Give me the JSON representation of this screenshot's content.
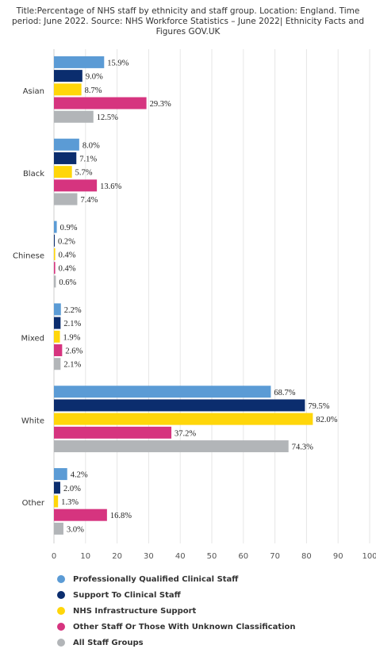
{
  "chart_data": {
    "type": "bar",
    "orientation": "horizontal",
    "title": "Title:Percentage of NHS staff by ethnicity and staff group. Location: England. Time period: June 2022. Source: NHS Workforce Statistics – June 2022| Ethnicity Facts and Figures GOV.UK",
    "categories": [
      "Asian",
      "Black",
      "Chinese",
      "Mixed",
      "White",
      "Other"
    ],
    "series": [
      {
        "name": "Professionally Qualified Clinical Staff",
        "color": "#5b9bd5",
        "values": [
          15.9,
          8.0,
          0.9,
          2.2,
          68.7,
          4.2
        ]
      },
      {
        "name": "Support To Clinical Staff",
        "color": "#0b2d6e",
        "values": [
          9.0,
          7.1,
          0.2,
          2.1,
          79.5,
          2.0
        ]
      },
      {
        "name": "NHS Infrastructure Support",
        "color": "#ffd60a",
        "values": [
          8.7,
          5.7,
          0.4,
          1.9,
          82.0,
          1.3
        ]
      },
      {
        "name": "Other Staff Or Those With Unknown Classification",
        "color": "#d6347f",
        "values": [
          29.3,
          13.6,
          0.4,
          2.6,
          37.2,
          16.8
        ]
      },
      {
        "name": "All Staff Groups",
        "color": "#b2b5b8",
        "values": [
          12.5,
          7.4,
          0.6,
          2.1,
          74.3,
          3.0
        ]
      }
    ],
    "value_suffix": "%",
    "xlim": [
      0,
      100
    ],
    "xticks": [
      0,
      10,
      20,
      30,
      40,
      50,
      60,
      70,
      80,
      90,
      100
    ],
    "grid": true,
    "legend_position": "bottom"
  }
}
